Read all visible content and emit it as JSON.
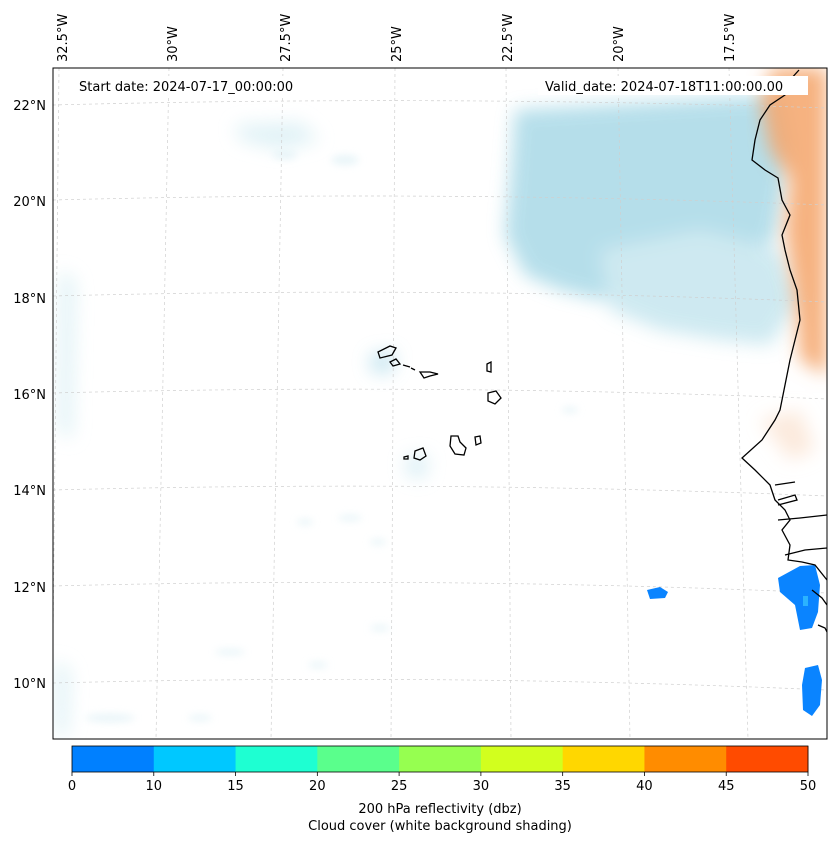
{
  "header": {
    "start_date": "Start date: 2024-07-17_00:00:00",
    "valid_date": "Valid_date: 2024-07-18T11:00:00.00"
  },
  "lon_ticks": [
    "32.5°W",
    "30°W",
    "27.5°W",
    "25°W",
    "22.5°W",
    "20°W",
    "17.5°W"
  ],
  "lat_ticks": [
    "22°N",
    "20°N",
    "18°N",
    "16°N",
    "14°N",
    "12°N",
    "10°N"
  ],
  "colorbar": {
    "levels": [
      "0",
      "10",
      "15",
      "20",
      "25",
      "30",
      "35",
      "40",
      "45",
      "50"
    ],
    "colors": [
      "#0080ff",
      "#00c8ff",
      "#1effd2",
      "#5aff8c",
      "#96ff50",
      "#d2ff1e",
      "#ffd700",
      "#ff8c00",
      "#ff4b00"
    ],
    "label_line1": "200 hPa reflectivity (dbz)",
    "label_line2": "Cloud cover (white background shading)"
  },
  "colors": {
    "cloud": "#a8d8e6",
    "warm_shading": "#f5a66a",
    "reflectivity_blue": "#0a84ff"
  }
}
